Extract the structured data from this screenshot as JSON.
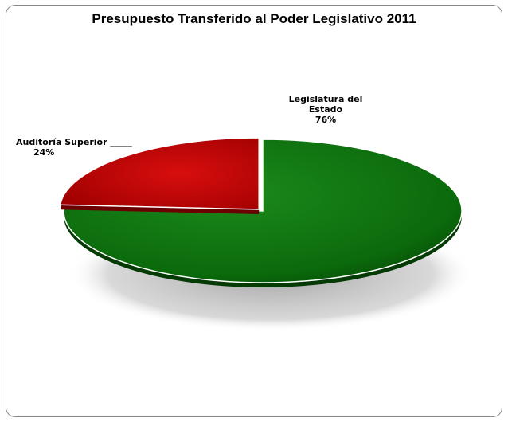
{
  "chart_data": {
    "type": "pie",
    "title": "Presupuesto Transferido al Poder Legislativo 2011",
    "slices": [
      {
        "label": "Legislatura del Estado",
        "label_line1": "Legislatura del",
        "label_line2": "Estado",
        "value": 76,
        "value_label": "76%",
        "color": "#0b6a0b"
      },
      {
        "label": "Auditoría Superior",
        "value": 24,
        "value_label": "24%",
        "color": "#c40000"
      }
    ]
  }
}
